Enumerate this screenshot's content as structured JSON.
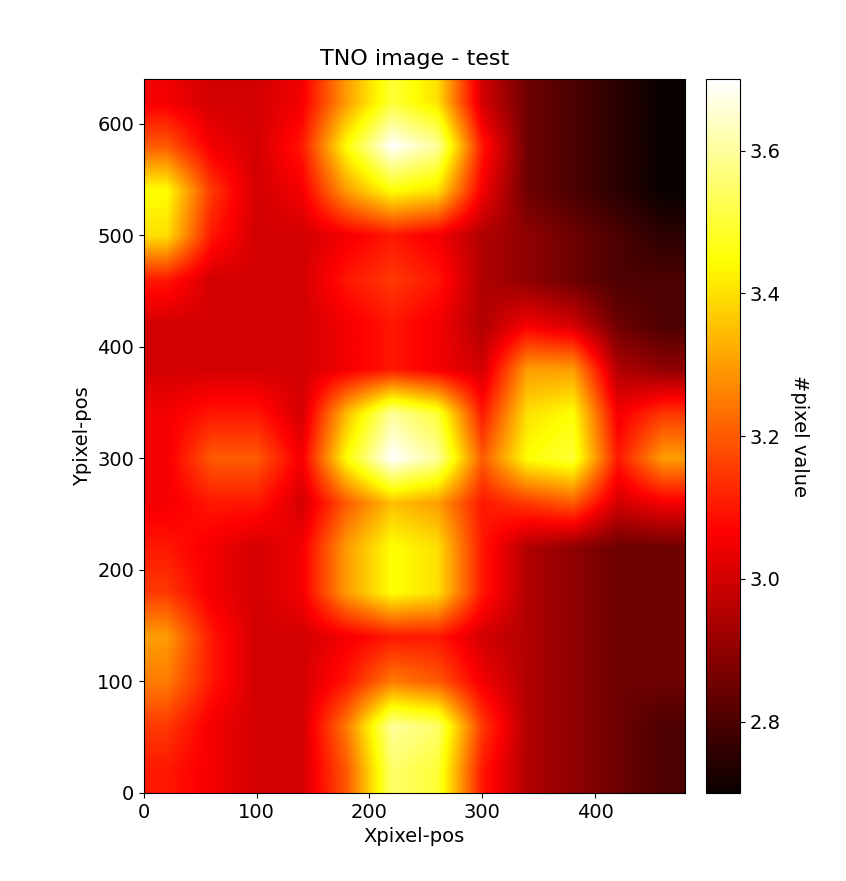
{
  "chart_data": {
    "type": "heatmap",
    "title": "TNO image - test",
    "x_label": "Xpixel-pos",
    "y_label": "Ypixel-pos",
    "color": "hot",
    "xlim": [
      0,
      480
    ],
    "ylim": [
      0,
      640
    ],
    "xticks": [
      0,
      100,
      200,
      300,
      400
    ],
    "yticks": [
      0,
      100,
      200,
      300,
      400,
      500,
      600
    ],
    "cells": [
      [
        3.1,
        3.05,
        3.0,
        3.0,
        3.2,
        3.55,
        3.5,
        3.1,
        2.95,
        2.9,
        2.85,
        2.8
      ],
      [
        3.15,
        3.05,
        3.0,
        3.0,
        3.25,
        3.6,
        3.55,
        3.15,
        2.95,
        2.9,
        2.85,
        2.8
      ],
      [
        3.25,
        3.1,
        3.0,
        3.0,
        3.1,
        3.25,
        3.2,
        3.05,
        2.95,
        2.9,
        2.85,
        2.85
      ],
      [
        3.3,
        3.1,
        3.0,
        3.0,
        3.05,
        3.1,
        3.1,
        3.0,
        2.95,
        2.9,
        2.85,
        2.85
      ],
      [
        3.15,
        3.05,
        3.0,
        3.05,
        3.3,
        3.45,
        3.4,
        3.1,
        2.95,
        2.9,
        2.85,
        2.85
      ],
      [
        3.1,
        3.05,
        3.0,
        3.05,
        3.3,
        3.45,
        3.4,
        3.1,
        2.95,
        2.9,
        2.85,
        2.85
      ],
      [
        3.05,
        3.1,
        3.1,
        3.0,
        3.2,
        3.35,
        3.3,
        3.1,
        3.15,
        3.2,
        3.0,
        3.05
      ],
      [
        3.05,
        3.2,
        3.2,
        3.05,
        3.45,
        3.7,
        3.6,
        3.2,
        3.45,
        3.5,
        3.1,
        3.3
      ],
      [
        3.05,
        3.1,
        3.1,
        3.0,
        3.35,
        3.6,
        3.5,
        3.1,
        3.4,
        3.45,
        3.05,
        3.15
      ],
      [
        3.0,
        3.0,
        3.0,
        3.0,
        3.05,
        3.1,
        3.05,
        3.0,
        3.3,
        3.3,
        2.95,
        2.9
      ],
      [
        3.0,
        3.0,
        3.0,
        3.0,
        3.05,
        3.1,
        3.05,
        2.95,
        3.05,
        3.0,
        2.85,
        2.8
      ],
      [
        3.1,
        3.0,
        3.0,
        3.0,
        3.1,
        3.15,
        3.1,
        2.95,
        2.9,
        2.85,
        2.8,
        2.8
      ],
      [
        3.4,
        3.1,
        3.0,
        3.0,
        3.05,
        3.1,
        3.05,
        2.95,
        2.9,
        2.85,
        2.8,
        2.75
      ],
      [
        3.45,
        3.15,
        3.0,
        3.05,
        3.3,
        3.45,
        3.4,
        3.05,
        2.85,
        2.8,
        2.75,
        2.7
      ],
      [
        3.2,
        3.05,
        3.0,
        3.1,
        3.45,
        3.7,
        3.6,
        3.1,
        2.85,
        2.8,
        2.75,
        2.7
      ],
      [
        3.05,
        3.0,
        3.0,
        3.05,
        3.3,
        3.5,
        3.4,
        3.0,
        2.85,
        2.8,
        2.75,
        2.7
      ]
    ],
    "colorbar_label": "#pixel value",
    "colorbar_lim": [
      2.7,
      3.7
    ],
    "colorbar_ticks": [
      {
        "value": 2.8,
        "label": "2.8"
      },
      {
        "value": 3.0,
        "label": "3.0"
      },
      {
        "value": 3.2,
        "label": "3.2"
      },
      {
        "value": 3.4,
        "label": "3.4"
      },
      {
        "value": 3.6,
        "label": "3.6"
      }
    ]
  }
}
